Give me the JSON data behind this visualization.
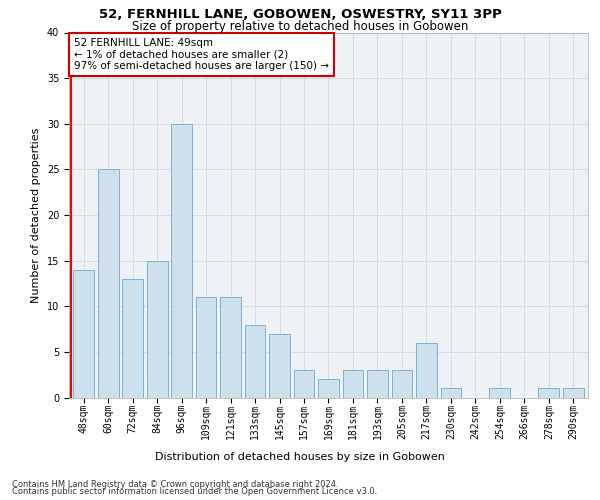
{
  "title1": "52, FERNHILL LANE, GOBOWEN, OSWESTRY, SY11 3PP",
  "title2": "Size of property relative to detached houses in Gobowen",
  "xlabel": "Distribution of detached houses by size in Gobowen",
  "ylabel": "Number of detached properties",
  "categories": [
    "48sqm",
    "60sqm",
    "72sqm",
    "84sqm",
    "96sqm",
    "109sqm",
    "121sqm",
    "133sqm",
    "145sqm",
    "157sqm",
    "169sqm",
    "181sqm",
    "193sqm",
    "205sqm",
    "217sqm",
    "230sqm",
    "242sqm",
    "254sqm",
    "266sqm",
    "278sqm",
    "290sqm"
  ],
  "values": [
    14,
    25,
    13,
    15,
    30,
    11,
    11,
    8,
    7,
    3,
    2,
    3,
    3,
    3,
    6,
    1,
    0,
    1,
    0,
    1,
    1
  ],
  "bar_color": "#cfe0ed",
  "bar_edge_color": "#7ab3d0",
  "annotation_line1": "52 FERNHILL LANE: 49sqm",
  "annotation_line2": "← 1% of detached houses are smaller (2)",
  "annotation_line3": "97% of semi-detached houses are larger (150) →",
  "annotation_box_edge_color": "#cc0000",
  "ylim": [
    0,
    40
  ],
  "yticks": [
    0,
    5,
    10,
    15,
    20,
    25,
    30,
    35,
    40
  ],
  "grid_color": "#d0d8e0",
  "background_color": "#eef2f7",
  "footer_line1": "Contains HM Land Registry data © Crown copyright and database right 2024.",
  "footer_line2": "Contains public sector information licensed under the Open Government Licence v3.0.",
  "title1_fontsize": 9.5,
  "title2_fontsize": 8.5,
  "xlabel_fontsize": 8,
  "ylabel_fontsize": 8,
  "tick_fontsize": 7,
  "annotation_fontsize": 7.5,
  "footer_fontsize": 6
}
